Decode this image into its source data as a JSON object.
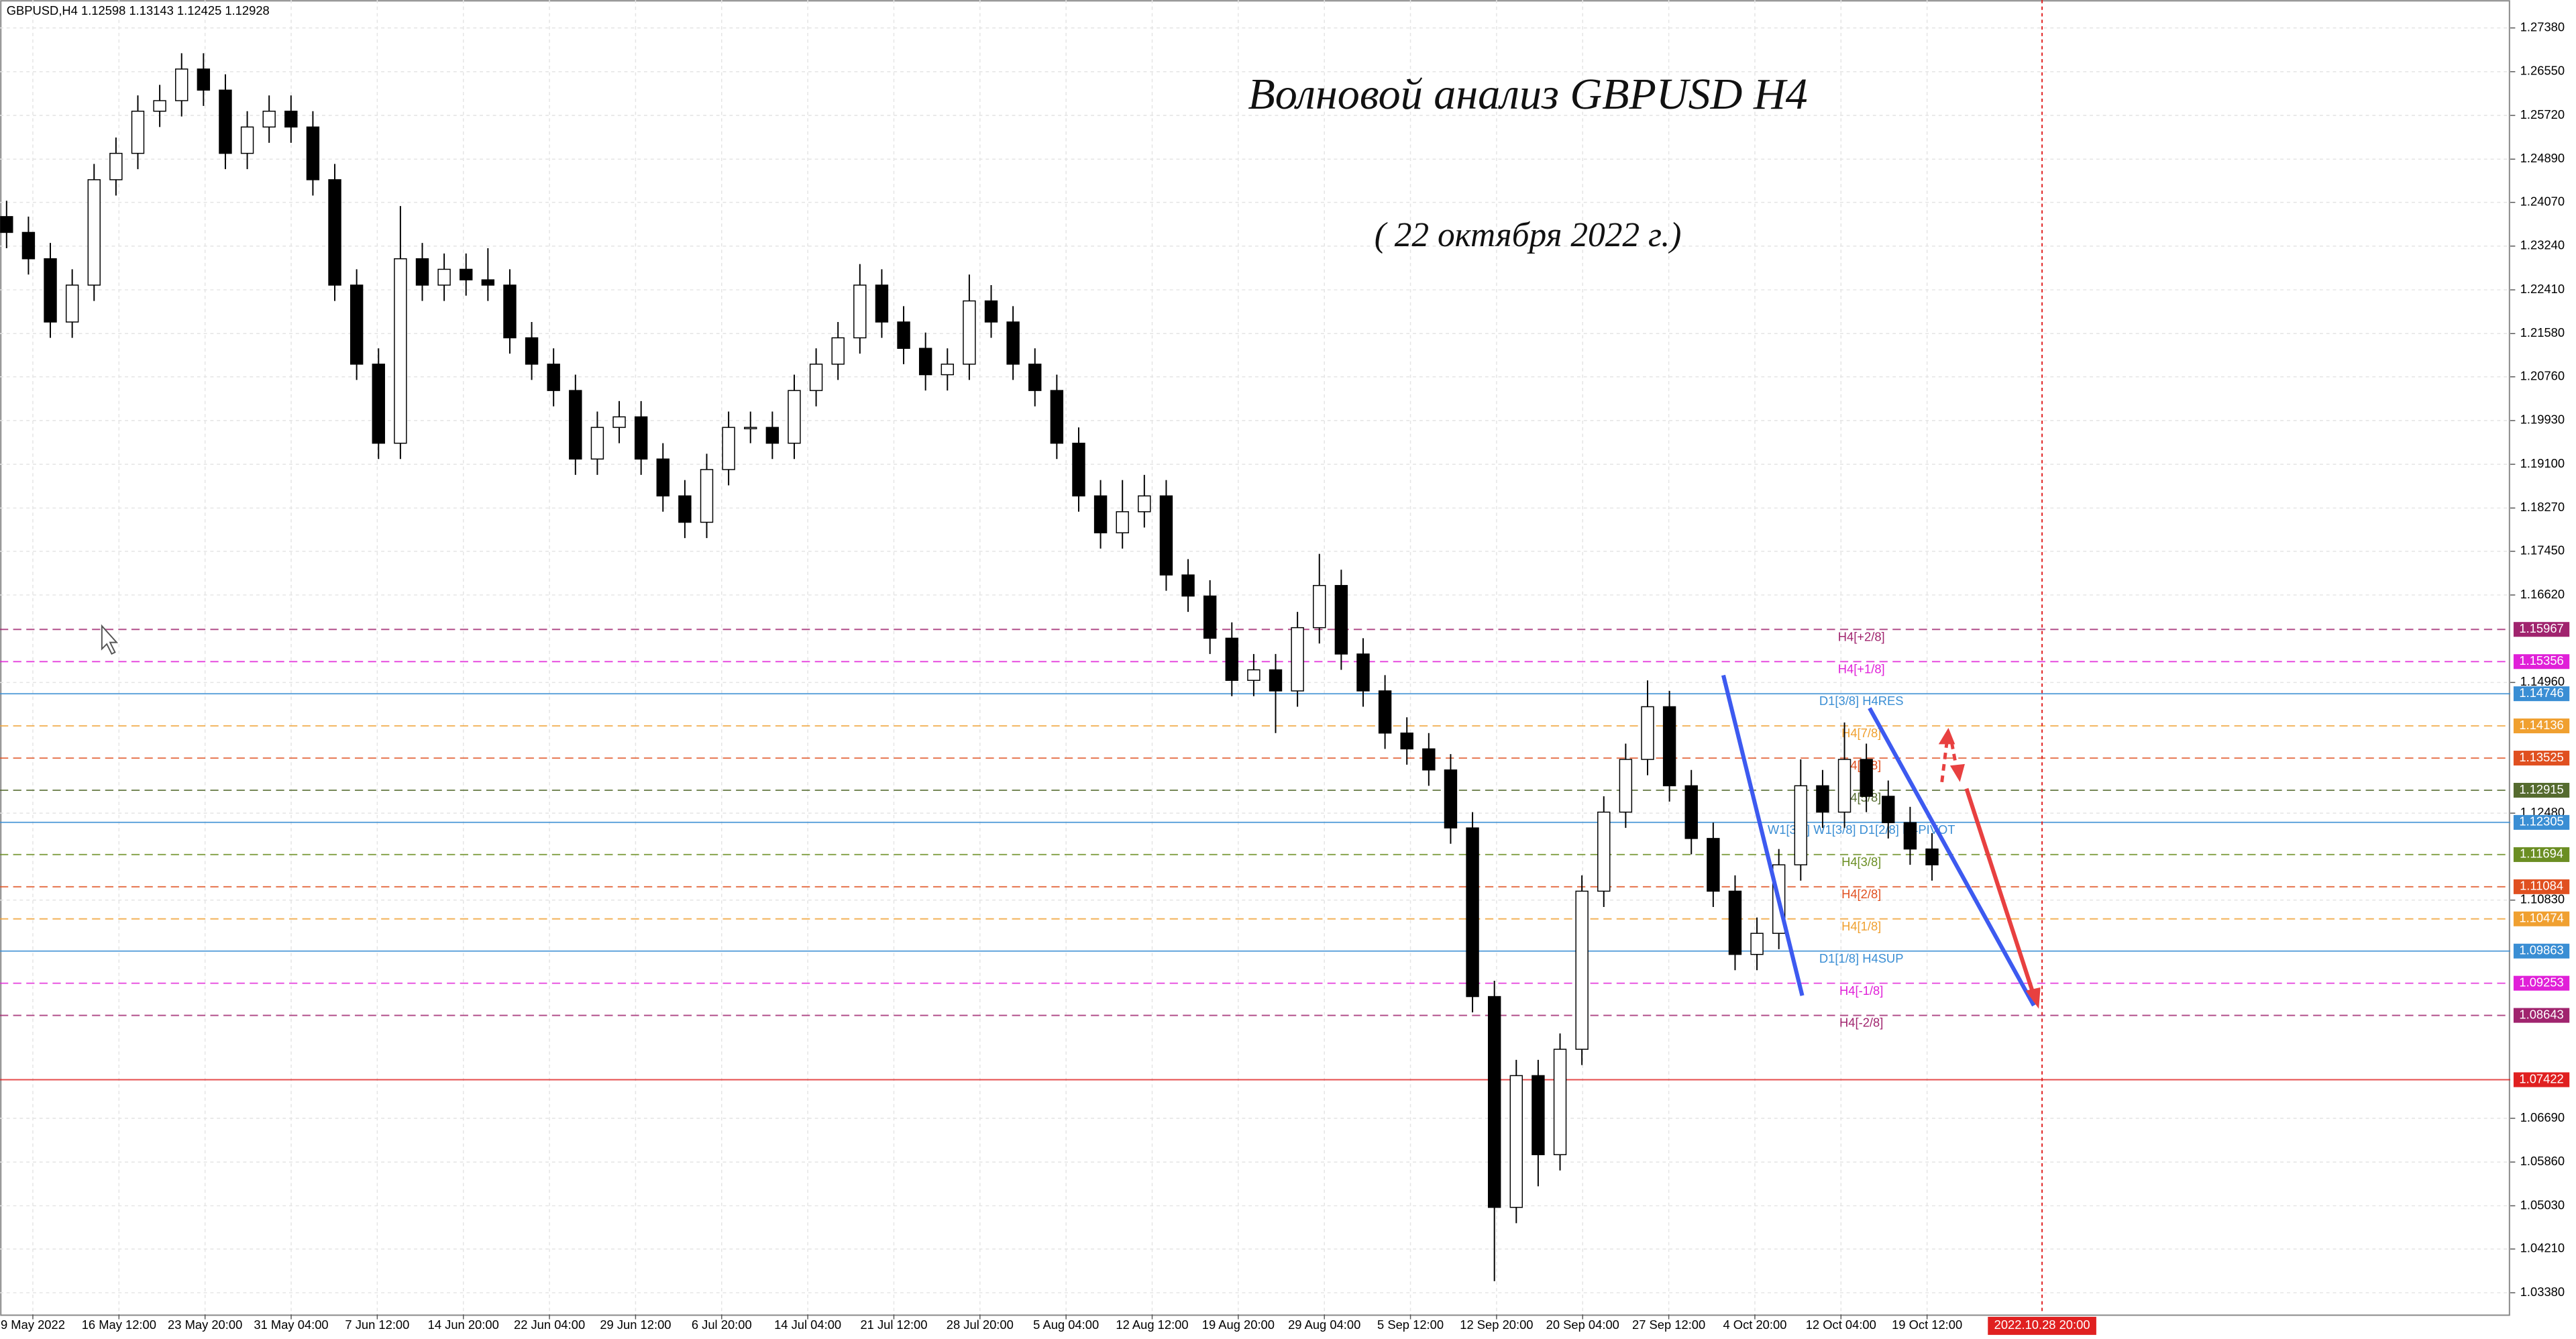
{
  "chart_data": {
    "type": "candlestick",
    "symbol": "GBPUSD,H4 1.12598 1.13143 1.12425 1.12928",
    "title": "Волновой анализ GBPUSD H4",
    "subtitle": "( 22 октября 2022 г.)",
    "categories": [
      "9 May 2022",
      "16 May 12:00",
      "23 May 20:00",
      "31 May 04:00",
      "7 Jun 12:00",
      "14 Jun 20:00",
      "22 Jun 04:00",
      "29 Jun 12:00",
      "6 Jul 20:00",
      "14 Jul 04:00",
      "21 Jul 12:00",
      "28 Jul 20:00",
      "5 Aug 04:00",
      "12 Aug 12:00",
      "19 Aug 20:00",
      "29 Aug 04:00",
      "5 Sep 12:00",
      "12 Sep 20:00",
      "20 Sep 04:00",
      "27 Sep 12:00",
      "4 Oct 20:00",
      "12 Oct 04:00",
      "19 Oct 12:00"
    ],
    "cursor_label": "2022.10.28 20:00",
    "ylim": [
      1.0297,
      1.2791
    ],
    "yticks": [
      {
        "value": 1.2738,
        "label": "1.27380"
      },
      {
        "value": 1.2655,
        "label": "1.26550"
      },
      {
        "value": 1.2572,
        "label": "1.25720"
      },
      {
        "value": 1.2489,
        "label": "1.24890"
      },
      {
        "value": 1.2407,
        "label": "1.24070"
      },
      {
        "value": 1.2324,
        "label": "1.23240"
      },
      {
        "value": 1.2241,
        "label": "1.22410"
      },
      {
        "value": 1.2158,
        "label": "1.21580"
      },
      {
        "value": 1.2076,
        "label": "1.20760"
      },
      {
        "value": 1.1993,
        "label": "1.19930"
      },
      {
        "value": 1.191,
        "label": "1.19100"
      },
      {
        "value": 1.1827,
        "label": "1.18270"
      },
      {
        "value": 1.1745,
        "label": "1.17450"
      },
      {
        "value": 1.1662,
        "label": "1.16620"
      },
      {
        "value": 1.1496,
        "label": "1.14960"
      },
      {
        "value": 1.1248,
        "label": "1.12480"
      },
      {
        "value": 1.1083,
        "label": "1.10830"
      },
      {
        "value": 1.0669,
        "label": "1.06690"
      },
      {
        "value": 1.0586,
        "label": "1.05860"
      },
      {
        "value": 1.0503,
        "label": "1.05030"
      },
      {
        "value": 1.0421,
        "label": "1.04210"
      },
      {
        "value": 1.0338,
        "label": "1.03380"
      }
    ],
    "grid": true,
    "up_color": "#ffffff",
    "down_color": "#000000",
    "candles": [
      [
        1.238,
        1.241,
        1.232,
        1.235
      ],
      [
        1.235,
        1.238,
        1.227,
        1.23
      ],
      [
        1.23,
        1.233,
        1.215,
        1.218
      ],
      [
        1.218,
        1.228,
        1.215,
        1.225
      ],
      [
        1.225,
        1.248,
        1.222,
        1.245
      ],
      [
        1.245,
        1.253,
        1.242,
        1.25
      ],
      [
        1.25,
        1.261,
        1.247,
        1.258
      ],
      [
        1.258,
        1.263,
        1.255,
        1.26
      ],
      [
        1.26,
        1.269,
        1.257,
        1.266
      ],
      [
        1.266,
        1.269,
        1.259,
        1.262
      ],
      [
        1.262,
        1.265,
        1.247,
        1.25
      ],
      [
        1.25,
        1.258,
        1.247,
        1.255
      ],
      [
        1.255,
        1.261,
        1.252,
        1.258
      ],
      [
        1.258,
        1.261,
        1.252,
        1.255
      ],
      [
        1.255,
        1.258,
        1.242,
        1.245
      ],
      [
        1.245,
        1.248,
        1.222,
        1.225
      ],
      [
        1.225,
        1.228,
        1.207,
        1.21
      ],
      [
        1.21,
        1.213,
        1.192,
        1.195
      ],
      [
        1.195,
        1.24,
        1.192,
        1.23
      ],
      [
        1.23,
        1.233,
        1.222,
        1.225
      ],
      [
        1.225,
        1.231,
        1.222,
        1.228
      ],
      [
        1.228,
        1.231,
        1.223,
        1.226
      ],
      [
        1.226,
        1.232,
        1.222,
        1.225
      ],
      [
        1.225,
        1.228,
        1.212,
        1.215
      ],
      [
        1.215,
        1.218,
        1.207,
        1.21
      ],
      [
        1.21,
        1.213,
        1.202,
        1.205
      ],
      [
        1.205,
        1.208,
        1.189,
        1.192
      ],
      [
        1.192,
        1.201,
        1.189,
        1.198
      ],
      [
        1.198,
        1.203,
        1.195,
        1.2
      ],
      [
        1.2,
        1.203,
        1.189,
        1.192
      ],
      [
        1.192,
        1.195,
        1.182,
        1.185
      ],
      [
        1.185,
        1.188,
        1.177,
        1.18
      ],
      [
        1.18,
        1.193,
        1.177,
        1.19
      ],
      [
        1.19,
        1.201,
        1.187,
        1.198
      ],
      [
        1.198,
        1.201,
        1.195,
        1.198
      ],
      [
        1.198,
        1.201,
        1.192,
        1.195
      ],
      [
        1.195,
        1.208,
        1.192,
        1.205
      ],
      [
        1.205,
        1.213,
        1.202,
        1.21
      ],
      [
        1.21,
        1.218,
        1.207,
        1.215
      ],
      [
        1.215,
        1.229,
        1.212,
        1.225
      ],
      [
        1.225,
        1.228,
        1.215,
        1.218
      ],
      [
        1.218,
        1.221,
        1.21,
        1.213
      ],
      [
        1.213,
        1.216,
        1.205,
        1.208
      ],
      [
        1.208,
        1.213,
        1.205,
        1.21
      ],
      [
        1.21,
        1.227,
        1.207,
        1.222
      ],
      [
        1.222,
        1.225,
        1.215,
        1.218
      ],
      [
        1.218,
        1.221,
        1.207,
        1.21
      ],
      [
        1.21,
        1.213,
        1.202,
        1.205
      ],
      [
        1.205,
        1.208,
        1.192,
        1.195
      ],
      [
        1.195,
        1.198,
        1.182,
        1.185
      ],
      [
        1.185,
        1.188,
        1.175,
        1.178
      ],
      [
        1.178,
        1.188,
        1.175,
        1.182
      ],
      [
        1.182,
        1.189,
        1.179,
        1.185
      ],
      [
        1.185,
        1.188,
        1.167,
        1.17
      ],
      [
        1.17,
        1.173,
        1.163,
        1.166
      ],
      [
        1.166,
        1.169,
        1.155,
        1.158
      ],
      [
        1.158,
        1.161,
        1.147,
        1.15
      ],
      [
        1.15,
        1.155,
        1.147,
        1.152
      ],
      [
        1.152,
        1.155,
        1.14,
        1.148
      ],
      [
        1.148,
        1.163,
        1.145,
        1.16
      ],
      [
        1.16,
        1.174,
        1.157,
        1.168
      ],
      [
        1.168,
        1.171,
        1.152,
        1.155
      ],
      [
        1.155,
        1.158,
        1.145,
        1.148
      ],
      [
        1.148,
        1.151,
        1.137,
        1.14
      ],
      [
        1.14,
        1.143,
        1.134,
        1.137
      ],
      [
        1.137,
        1.14,
        1.13,
        1.133
      ],
      [
        1.133,
        1.136,
        1.119,
        1.122
      ],
      [
        1.122,
        1.125,
        1.087,
        1.09
      ],
      [
        1.09,
        1.093,
        1.036,
        1.05
      ],
      [
        1.05,
        1.078,
        1.047,
        1.075
      ],
      [
        1.075,
        1.078,
        1.054,
        1.06
      ],
      [
        1.06,
        1.083,
        1.057,
        1.08
      ],
      [
        1.08,
        1.113,
        1.077,
        1.11
      ],
      [
        1.11,
        1.128,
        1.107,
        1.125
      ],
      [
        1.125,
        1.138,
        1.122,
        1.135
      ],
      [
        1.135,
        1.15,
        1.132,
        1.145
      ],
      [
        1.145,
        1.148,
        1.127,
        1.13
      ],
      [
        1.13,
        1.133,
        1.117,
        1.12
      ],
      [
        1.12,
        1.123,
        1.107,
        1.11
      ],
      [
        1.11,
        1.113,
        1.095,
        1.098
      ],
      [
        1.098,
        1.105,
        1.095,
        1.102
      ],
      [
        1.102,
        1.118,
        1.099,
        1.115
      ],
      [
        1.115,
        1.135,
        1.112,
        1.13
      ],
      [
        1.13,
        1.133,
        1.122,
        1.125
      ],
      [
        1.125,
        1.142,
        1.122,
        1.135
      ],
      [
        1.135,
        1.138,
        1.125,
        1.128
      ],
      [
        1.128,
        1.131,
        1.12,
        1.123
      ],
      [
        1.123,
        1.126,
        1.115,
        1.118
      ],
      [
        1.118,
        1.121,
        1.112,
        1.115
      ]
    ],
    "levels": [
      {
        "label": "H4[+2/8]",
        "value": 1.15967,
        "color": "#a0246e",
        "dashed": true
      },
      {
        "label": "H4[+1/8]",
        "value": 1.15356,
        "color": "#e020d8",
        "dashed": true
      },
      {
        "label": "D1[3/8] H4RES",
        "value": 1.14746,
        "color": "#3a8ed4",
        "dashed": false
      },
      {
        "label": "H4[7/8]",
        "value": 1.14136,
        "color": "#f0a030",
        "dashed": true
      },
      {
        "label": "H4[6/8]",
        "value": 1.13525,
        "color": "#e05020",
        "dashed": true
      },
      {
        "label": "H4[5/8]",
        "value": 1.12915,
        "color": "#556b2f",
        "dashed": true
      },
      {
        "label": "W1[3/8] W1[3/8] D1[2/8] H4PIVOT",
        "value": 1.12305,
        "color": "#3a8ed4",
        "dashed": false
      },
      {
        "label": "H4[3/8]",
        "value": 1.11694,
        "color": "#6b8e23",
        "dashed": true
      },
      {
        "label": "H4[2/8]",
        "value": 1.11084,
        "color": "#e05020",
        "dashed": true
      },
      {
        "label": "H4[1/8]",
        "value": 1.10474,
        "color": "#f0a030",
        "dashed": true
      },
      {
        "label": "D1[1/8] H4SUP",
        "value": 1.09863,
        "color": "#3a8ed4",
        "dashed": false
      },
      {
        "label": "H4[-1/8]",
        "value": 1.09253,
        "color": "#e020d8",
        "dashed": true
      },
      {
        "label": "H4[-2/8]",
        "value": 1.08643,
        "color": "#a0246e",
        "dashed": true
      },
      {
        "value": 1.07422,
        "color": "#e02020",
        "dashed": false
      }
    ]
  }
}
